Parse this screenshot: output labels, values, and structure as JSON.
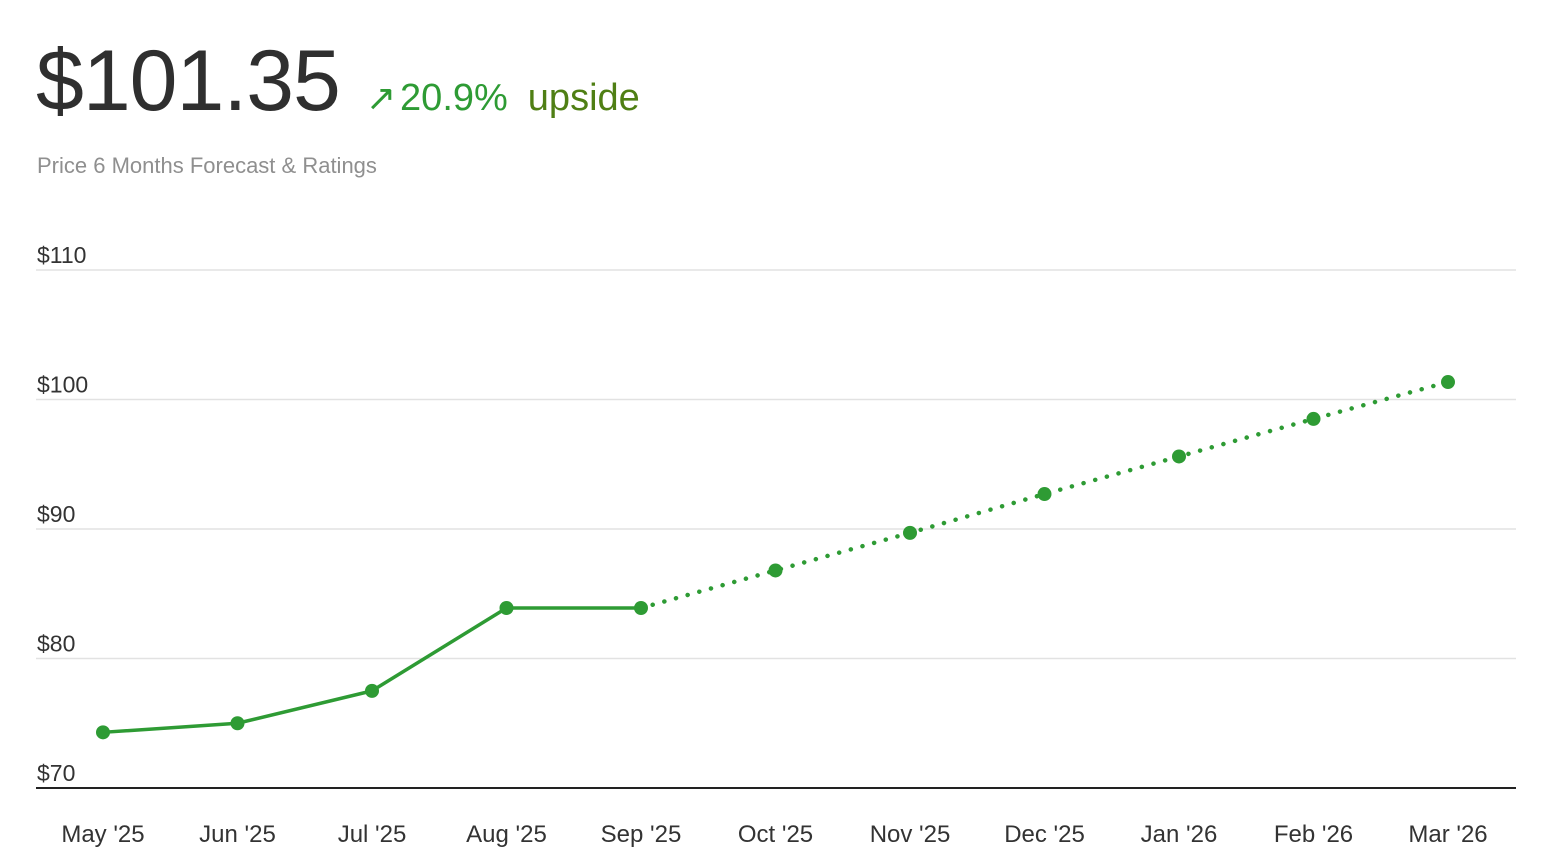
{
  "header": {
    "price": "$101.35",
    "change_arrow": "↗",
    "change_pct": "20.9%",
    "change_label": "upside",
    "subtitle": "Price 6 Months Forecast & Ratings"
  },
  "colors": {
    "series": "#2e9b34",
    "upside_text": "#4f7f14",
    "grid": "#e2e2e2",
    "axis": "#222222"
  },
  "chart_data": {
    "type": "line",
    "categories": [
      "May '25",
      "Jun '25",
      "Jul '25",
      "Aug '25",
      "Sep '25",
      "Oct '25",
      "Nov '25",
      "Dec '25",
      "Jan '26",
      "Feb '26",
      "Mar '26"
    ],
    "ylim": [
      70,
      110
    ],
    "yticks": [
      70,
      80,
      90,
      100,
      110
    ],
    "ytick_labels": [
      "$70",
      "$80",
      "$90",
      "$100",
      "$110"
    ],
    "grid": true,
    "series": [
      {
        "style": "solid",
        "x": [
          "May '25",
          "Jun '25",
          "Jul '25",
          "Aug '25",
          "Sep '25"
        ],
        "values": [
          74.3,
          75.0,
          77.5,
          83.9,
          83.9
        ]
      },
      {
        "style": "dotted",
        "x": [
          "Sep '25",
          "Oct '25",
          "Nov '25",
          "Dec '25",
          "Jan '26",
          "Feb '26",
          "Mar '26"
        ],
        "values": [
          83.9,
          86.8,
          89.7,
          92.7,
          95.6,
          98.5,
          101.35
        ]
      }
    ]
  }
}
